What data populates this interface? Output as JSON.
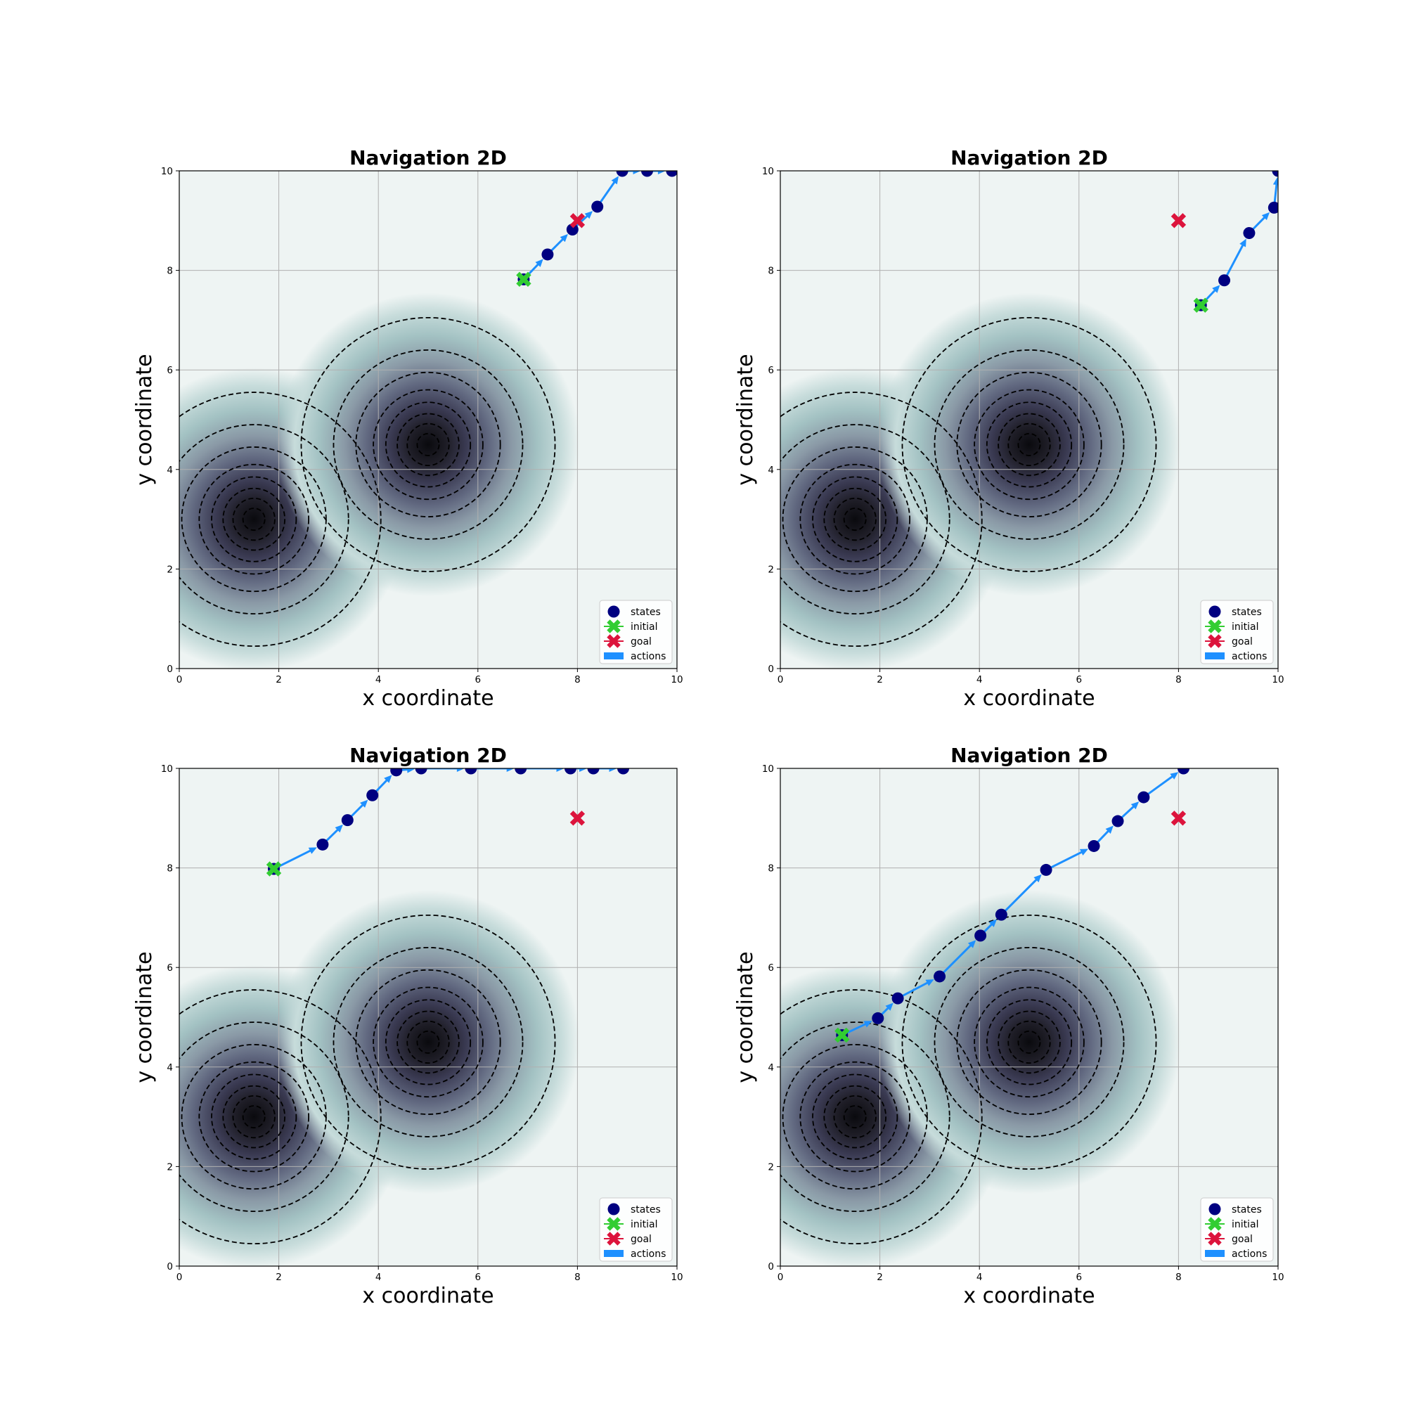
{
  "colors": {
    "states": "#000080",
    "initial": "#32cd32",
    "goal": "#dc143c",
    "actions": "#1e90ff",
    "background": "#eef4f3",
    "contour_line": "#000000"
  },
  "legend": {
    "placement": "lower-right",
    "states": "states",
    "initial": "initial",
    "goal": "goal",
    "actions": "actions"
  },
  "chart_data": [
    {
      "type": "line",
      "title": "Navigation 2D",
      "xlabel": "x coordinate",
      "ylabel": "y coordinate",
      "xlim": [
        0,
        10
      ],
      "ylim": [
        0,
        10
      ],
      "xticks": [
        "0",
        "2",
        "4",
        "6",
        "8",
        "10"
      ],
      "yticks": [
        "0",
        "2",
        "4",
        "6",
        "8",
        "10"
      ],
      "grid": true,
      "hazards": [
        {
          "center": [
            1.5,
            3.0
          ]
        },
        {
          "center": [
            5.0,
            4.5
          ]
        }
      ],
      "initial": [
        6.92,
        7.82
      ],
      "goal": [
        8.0,
        9.0
      ],
      "states": [
        [
          6.92,
          7.82
        ],
        [
          7.4,
          8.32
        ],
        [
          7.9,
          8.82
        ],
        [
          8.4,
          9.28
        ],
        [
          8.9,
          10.0
        ],
        [
          9.4,
          10.0
        ],
        [
          9.9,
          10.0
        ]
      ]
    },
    {
      "type": "line",
      "title": "Navigation 2D",
      "xlabel": "x coordinate",
      "ylabel": "y coordinate",
      "xlim": [
        0,
        10
      ],
      "ylim": [
        0,
        10
      ],
      "xticks": [
        "0",
        "2",
        "4",
        "6",
        "8",
        "10"
      ],
      "yticks": [
        "0",
        "2",
        "4",
        "6",
        "8",
        "10"
      ],
      "grid": true,
      "hazards": [
        {
          "center": [
            1.5,
            3.0
          ]
        },
        {
          "center": [
            5.0,
            4.5
          ]
        }
      ],
      "initial": [
        8.45,
        7.3
      ],
      "goal": [
        8.0,
        9.0
      ],
      "states": [
        [
          8.45,
          7.3
        ],
        [
          8.92,
          7.8
        ],
        [
          9.42,
          8.75
        ],
        [
          9.92,
          9.26
        ],
        [
          10.0,
          10.0
        ]
      ]
    },
    {
      "type": "line",
      "title": "Navigation 2D",
      "xlabel": "x coordinate",
      "ylabel": "y coordinate",
      "xlim": [
        0,
        10
      ],
      "ylim": [
        0,
        10
      ],
      "xticks": [
        "0",
        "2",
        "4",
        "6",
        "8",
        "10"
      ],
      "yticks": [
        "0",
        "2",
        "4",
        "6",
        "8",
        "10"
      ],
      "grid": true,
      "hazards": [
        {
          "center": [
            1.5,
            3.0
          ]
        },
        {
          "center": [
            5.0,
            4.5
          ]
        }
      ],
      "initial": [
        1.9,
        7.98
      ],
      "goal": [
        8.0,
        9.0
      ],
      "states": [
        [
          1.9,
          7.98
        ],
        [
          2.88,
          8.47
        ],
        [
          3.38,
          8.96
        ],
        [
          3.88,
          9.46
        ],
        [
          4.36,
          9.96
        ],
        [
          4.86,
          10.0
        ],
        [
          5.86,
          10.0
        ],
        [
          6.86,
          10.0
        ],
        [
          7.86,
          10.0
        ],
        [
          8.32,
          10.0
        ],
        [
          8.92,
          10.0
        ]
      ]
    },
    {
      "type": "line",
      "title": "Navigation 2D",
      "xlabel": "x coordinate",
      "ylabel": "y coordinate",
      "xlim": [
        0,
        10
      ],
      "ylim": [
        0,
        10
      ],
      "xticks": [
        "0",
        "2",
        "4",
        "6",
        "8",
        "10"
      ],
      "yticks": [
        "0",
        "2",
        "4",
        "6",
        "8",
        "10"
      ],
      "grid": true,
      "hazards": [
        {
          "center": [
            1.5,
            3.0
          ]
        },
        {
          "center": [
            5.0,
            4.5
          ]
        }
      ],
      "initial": [
        1.24,
        4.64
      ],
      "goal": [
        8.0,
        9.0
      ],
      "states": [
        [
          1.24,
          4.64
        ],
        [
          1.96,
          4.98
        ],
        [
          2.36,
          5.38
        ],
        [
          3.2,
          5.82
        ],
        [
          4.02,
          6.64
        ],
        [
          4.44,
          7.06
        ],
        [
          5.34,
          7.96
        ],
        [
          6.3,
          8.44
        ],
        [
          6.78,
          8.94
        ],
        [
          7.3,
          9.42
        ],
        [
          8.1,
          10.0
        ]
      ]
    }
  ]
}
